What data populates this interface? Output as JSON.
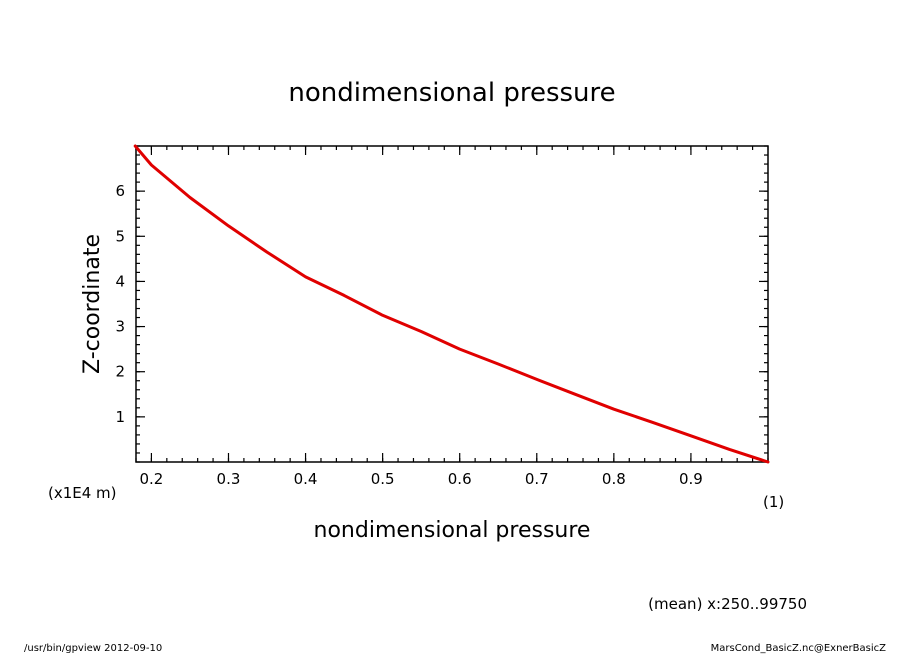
{
  "chart_data": {
    "type": "line",
    "title": "nondimensional pressure",
    "xlabel": "nondimensional pressure",
    "ylabel": "Z-coordinate",
    "x_unit": "(1)",
    "y_unit": "(x1E4 m)",
    "xlim": [
      0.18,
      1.0
    ],
    "ylim": [
      0,
      7
    ],
    "x_ticks": [
      "0.2",
      "0.3",
      "0.4",
      "0.5",
      "0.6",
      "0.7",
      "0.8",
      "0.9"
    ],
    "y_ticks": [
      "1",
      "2",
      "3",
      "4",
      "5",
      "6"
    ],
    "grid": false,
    "series": [
      {
        "color": "#e00000",
        "x": [
          0.179,
          0.2,
          0.25,
          0.3,
          0.35,
          0.4,
          0.45,
          0.5,
          0.55,
          0.6,
          0.65,
          0.7,
          0.75,
          0.8,
          0.85,
          0.9,
          0.95,
          1.0
        ],
        "y": [
          7.0,
          6.58,
          5.86,
          5.23,
          4.65,
          4.1,
          3.69,
          3.25,
          2.89,
          2.5,
          2.17,
          1.83,
          1.5,
          1.17,
          0.88,
          0.58,
          0.28,
          0.0
        ]
      }
    ]
  },
  "footer": {
    "range_label": "(mean) x:250..99750",
    "left_note": "/usr/bin/gpview  2012-09-10",
    "right_note": "MarsCond_BasicZ.nc@ExnerBasicZ"
  }
}
